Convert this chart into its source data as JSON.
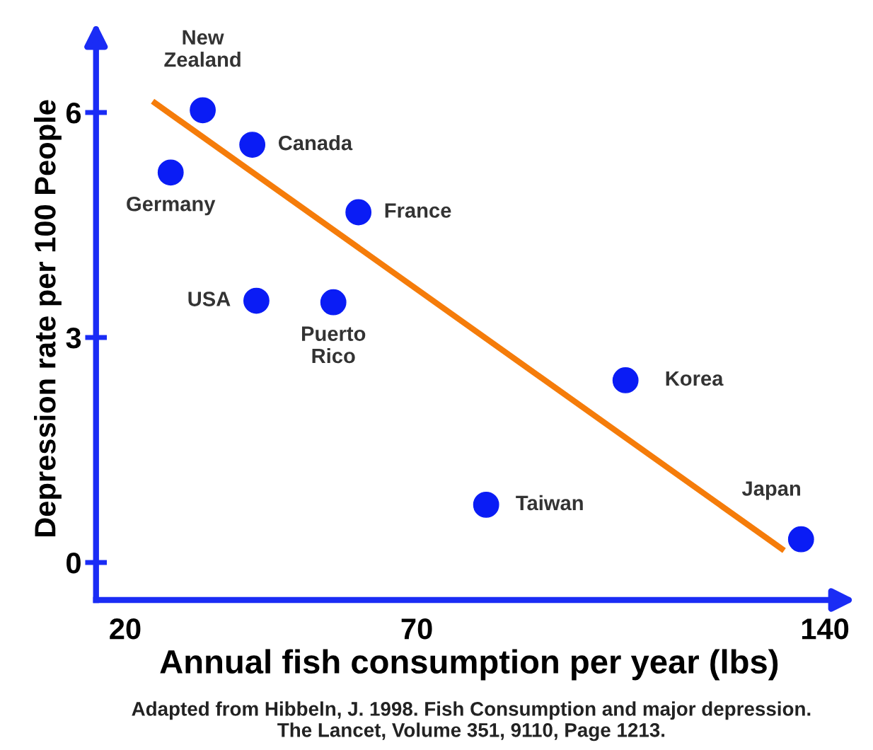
{
  "chart_data": {
    "type": "scatter",
    "xlabel": "Annual fish consumption per year (lbs)",
    "ylabel": "Depression rate per 100 People",
    "xlim": [
      15,
      143
    ],
    "ylim": [
      -0.5,
      7
    ],
    "xticks": [
      20,
      70,
      140
    ],
    "yticks": [
      0,
      3,
      6
    ],
    "grid": false,
    "legend": false,
    "marker": "circle",
    "series": [
      {
        "color": "#0a1cf5",
        "x": [
          33.3,
          41.8,
          27.8,
          60.0,
          42.5,
          55.7,
          105.8,
          81.9,
          135.9
        ],
        "values": [
          6.03,
          5.57,
          5.2,
          4.67,
          3.49,
          3.47,
          2.43,
          0.77,
          0.31
        ]
      },
      {
        "type": "line",
        "color": "#f57c0a",
        "marker": "none",
        "x": [
          24.7,
          133.0
        ],
        "values": [
          6.15,
          0.16
        ]
      }
    ],
    "annotations": [
      {
        "text": "New\nZealand",
        "x": 33.3,
        "y": 6.03
      },
      {
        "text": "Canada",
        "x": 41.8,
        "y": 5.57
      },
      {
        "text": "Germany",
        "x": 27.8,
        "y": 5.2
      },
      {
        "text": "France",
        "x": 60.0,
        "y": 4.67
      },
      {
        "text": "USA",
        "x": 42.5,
        "y": 3.49
      },
      {
        "text": "Puerto\nRico",
        "x": 55.7,
        "y": 3.47
      },
      {
        "text": "Korea",
        "x": 105.8,
        "y": 2.43
      },
      {
        "text": "Taiwan",
        "x": 81.9,
        "y": 0.77
      },
      {
        "text": "Japan",
        "x": 135.9,
        "y": 0.31
      },
      "Adapted from Hibbeln, J. 1998. Fish Consumption and major depression.\nThe Lancet, Volume 351, 9110, Page 1213."
    ]
  }
}
